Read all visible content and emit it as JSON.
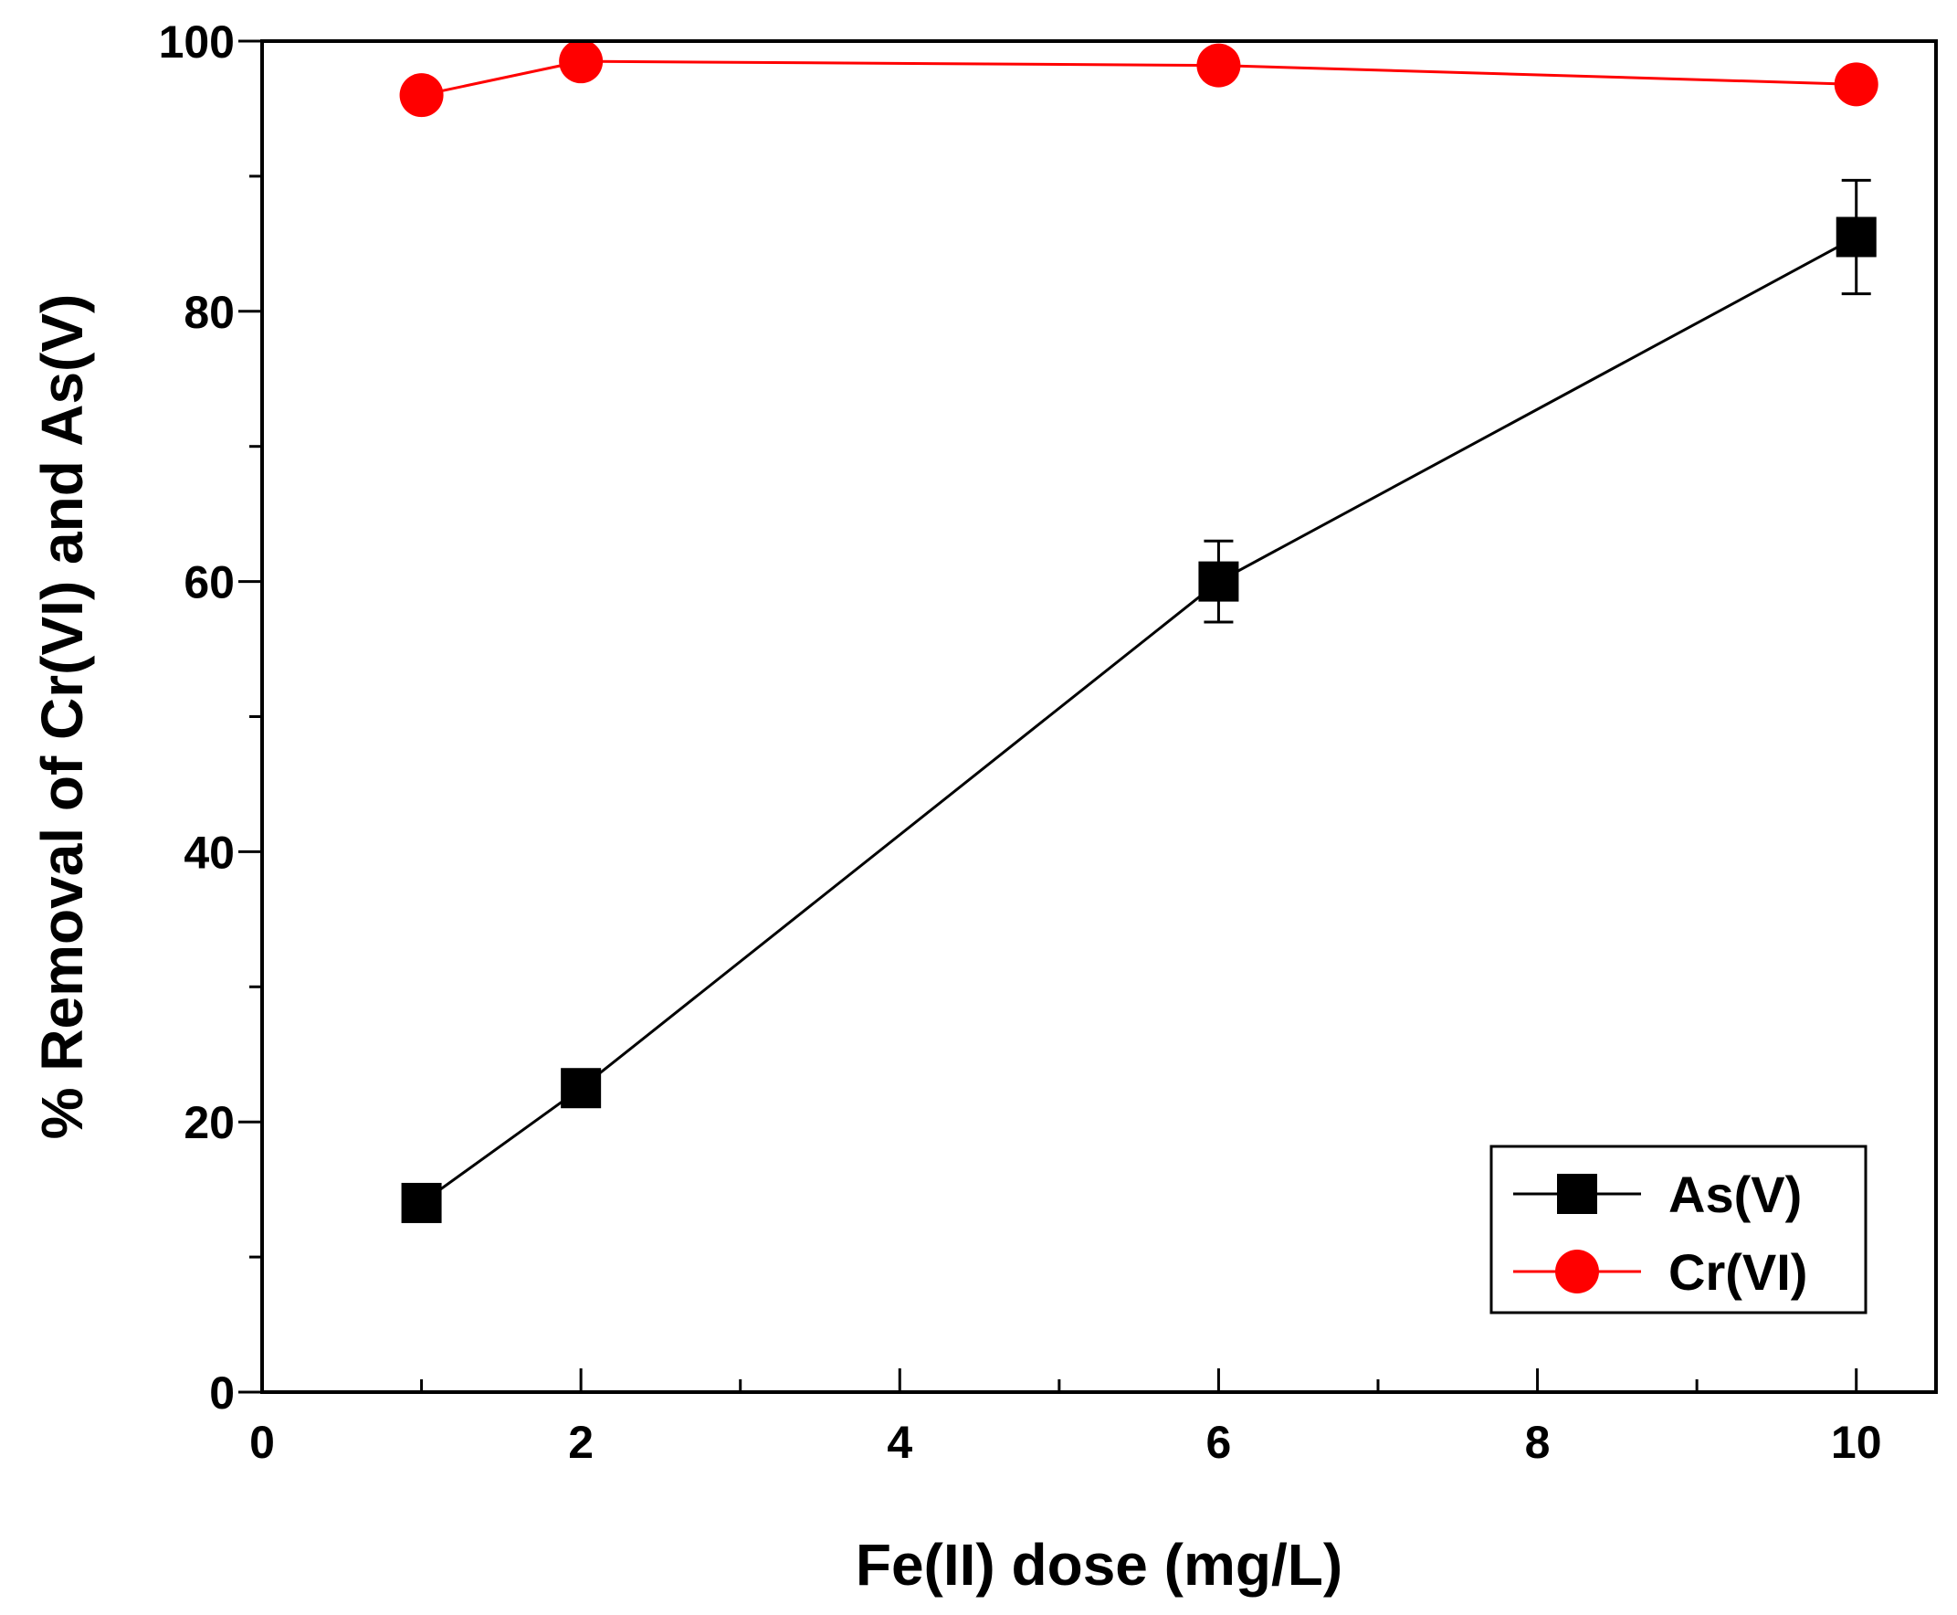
{
  "chart_data": {
    "type": "line",
    "title": "",
    "xlabel": "Fe(II) dose (mg/L)",
    "ylabel": "% Removal of Cr(VI) and As(V)",
    "xlim": [
      0,
      10.5
    ],
    "ylim": [
      0,
      100
    ],
    "xticks": [
      0,
      2,
      4,
      6,
      8,
      10
    ],
    "xtick_labels": [
      "0",
      "2",
      "4",
      "6",
      "8",
      "10"
    ],
    "yticks": [
      0,
      20,
      40,
      60,
      80,
      100
    ],
    "ytick_labels": [
      "0",
      "20",
      "40",
      "60",
      "80",
      "100"
    ],
    "grid": false,
    "legend_position": "bottom-right",
    "series": [
      {
        "name": "As(V)",
        "color": "#000000",
        "marker": "square",
        "x": [
          1,
          2,
          6,
          10
        ],
        "y": [
          14,
          22.5,
          60,
          85.5
        ],
        "error": [
          null,
          null,
          3,
          4.2
        ]
      },
      {
        "name": "Cr(VI)",
        "color": "#ff0000",
        "marker": "circle",
        "x": [
          1,
          2,
          6,
          10
        ],
        "y": [
          96,
          98.5,
          98.2,
          96.8
        ],
        "error": [
          null,
          null,
          null,
          null
        ]
      }
    ]
  }
}
